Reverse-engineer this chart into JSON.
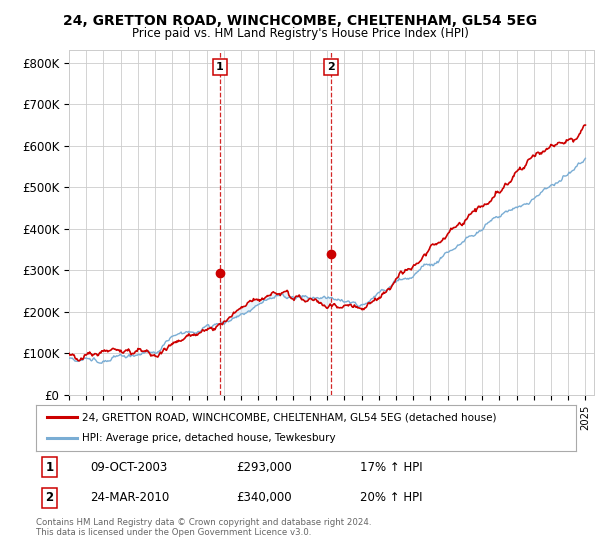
{
  "title": "24, GRETTON ROAD, WINCHCOMBE, CHELTENHAM, GL54 5EG",
  "subtitle": "Price paid vs. HM Land Registry's House Price Index (HPI)",
  "ylabel_ticks": [
    "£0",
    "£100K",
    "£200K",
    "£300K",
    "£400K",
    "£500K",
    "£600K",
    "£700K",
    "£800K"
  ],
  "ytick_values": [
    0,
    100000,
    200000,
    300000,
    400000,
    500000,
    600000,
    700000,
    800000
  ],
  "ylim": [
    0,
    830000
  ],
  "xlim_start": 1995.0,
  "xlim_end": 2025.5,
  "sale1_x": 2003.77,
  "sale1_y": 293000,
  "sale2_x": 2010.23,
  "sale2_y": 340000,
  "sale1_label": "1",
  "sale2_label": "2",
  "sale1_date": "09-OCT-2003",
  "sale1_price": "£293,000",
  "sale1_hpi": "17% ↑ HPI",
  "sale2_date": "24-MAR-2010",
  "sale2_price": "£340,000",
  "sale2_hpi": "20% ↑ HPI",
  "legend1_label": "24, GRETTON ROAD, WINCHCOMBE, CHELTENHAM, GL54 5EG (detached house)",
  "legend2_label": "HPI: Average price, detached house, Tewkesbury",
  "footer": "Contains HM Land Registry data © Crown copyright and database right 2024.\nThis data is licensed under the Open Government Licence v3.0.",
  "line1_color": "#cc0000",
  "line2_color": "#7aadd4",
  "shade_color": "#d8eaf8",
  "vline_color": "#cc0000",
  "background_color": "#ffffff",
  "grid_color": "#cccccc"
}
